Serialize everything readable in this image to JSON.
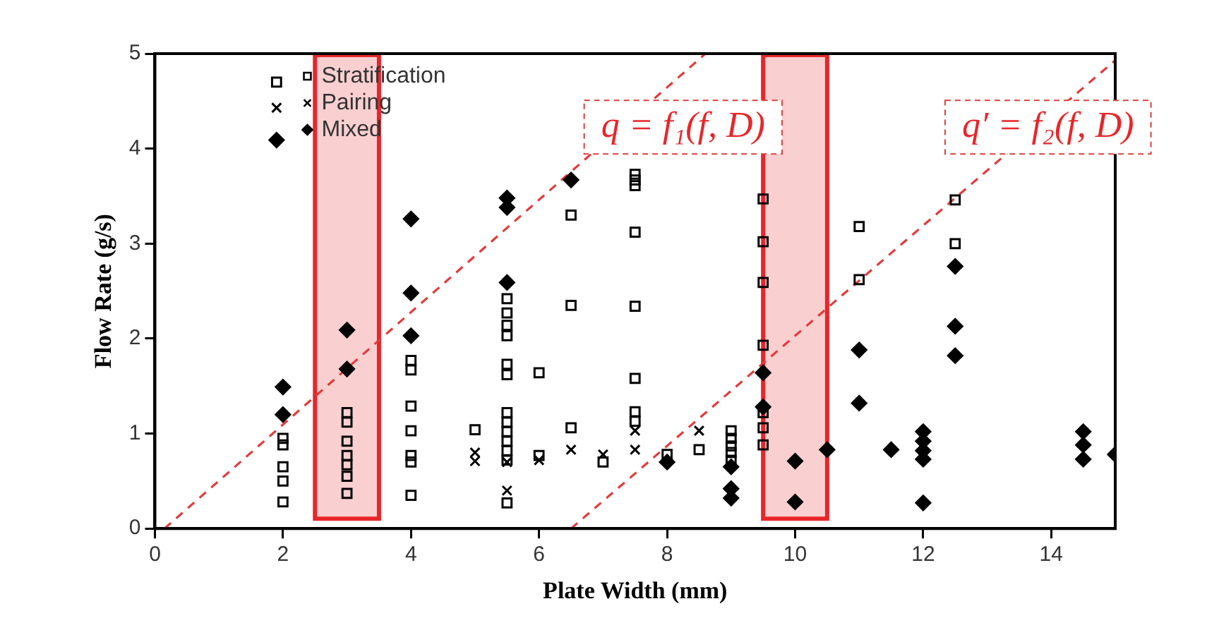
{
  "chart_data": {
    "type": "scatter",
    "xlabel": "Plate Width (mm)",
    "ylabel": "Flow Rate (g/s)",
    "xlim": [
      0,
      15
    ],
    "xticks": [
      0,
      2,
      4,
      6,
      8,
      10,
      12,
      14
    ],
    "ylim": [
      0,
      5
    ],
    "yticks": [
      0,
      1,
      2,
      3,
      4,
      5
    ],
    "grid": false,
    "legend": "top left",
    "series": [
      {
        "name": "Stratification",
        "color": "#000000",
        "marker": "square",
        "x": [
          1.9,
          2,
          2,
          2,
          2,
          2,
          3,
          3,
          3,
          3,
          3,
          3,
          3,
          4,
          4,
          4,
          4,
          4,
          4,
          4,
          5,
          5.5,
          5.5,
          5.5,
          5.5,
          5.5,
          5.5,
          5.5,
          5.5,
          5.5,
          5.5,
          5.5,
          5.5,
          5.5,
          6,
          6,
          6.5,
          6.5,
          6.5,
          7,
          7.5,
          7.5,
          7.5,
          7.5,
          7.5,
          7.5,
          7.5,
          7.5,
          8,
          8.5,
          9,
          9,
          9,
          9,
          9,
          9.5,
          9.5,
          9.5,
          9.5,
          9.5,
          9.5,
          9.5,
          11,
          11,
          12.5,
          12.5
        ],
        "values": [
          4.7,
          0.95,
          0.88,
          0.65,
          0.5,
          0.28,
          1.22,
          1.12,
          0.92,
          0.77,
          0.67,
          0.55,
          0.37,
          1.77,
          1.67,
          1.29,
          1.03,
          0.77,
          0.7,
          0.35,
          1.04,
          2.42,
          2.27,
          2.14,
          2.03,
          1.73,
          1.62,
          1.22,
          1.12,
          1.02,
          0.92,
          0.82,
          0.72,
          0.27,
          1.64,
          0.77,
          3.3,
          2.35,
          1.06,
          0.7,
          3.73,
          3.67,
          3.61,
          3.12,
          2.34,
          1.58,
          1.23,
          1.13,
          0.78,
          0.83,
          1.03,
          0.95,
          0.87,
          0.8,
          0.72,
          3.47,
          3.02,
          2.59,
          1.93,
          1.22,
          1.06,
          0.88,
          3.18,
          2.62,
          3.46,
          3.0
        ]
      },
      {
        "name": "Pairing",
        "color": "#000000",
        "marker": "cross",
        "x": [
          1.9,
          5,
          5,
          5.5,
          5.5,
          6,
          6.5,
          7,
          7.5,
          7.5,
          8.5
        ],
        "values": [
          4.43,
          0.8,
          0.71,
          0.7,
          0.4,
          0.72,
          0.83,
          0.78,
          1.03,
          0.83,
          1.03
        ]
      },
      {
        "name": "Mixed",
        "color": "#000000",
        "marker": "diamond",
        "x": [
          1.9,
          2,
          2,
          3,
          3,
          4,
          4,
          4,
          5.5,
          5.5,
          5.5,
          6.5,
          8,
          9,
          9,
          9,
          9.5,
          9.5,
          10,
          10,
          10.5,
          11,
          11,
          11.5,
          12,
          12,
          12,
          12,
          12,
          12.5,
          12.5,
          12.5,
          14.5,
          14.5,
          14.5,
          15
        ],
        "values": [
          4.09,
          1.49,
          1.2,
          2.09,
          1.68,
          3.26,
          2.48,
          2.03,
          3.48,
          3.38,
          2.59,
          3.67,
          0.7,
          0.65,
          0.42,
          0.32,
          1.64,
          1.28,
          0.71,
          0.28,
          0.83,
          1.88,
          1.32,
          0.83,
          1.02,
          0.92,
          0.82,
          0.73,
          0.27,
          2.76,
          2.13,
          1.82,
          1.02,
          0.88,
          0.73,
          0.78
        ]
      },
      {
        "type": "line",
        "color": "#e03c3c",
        "line_style": "dashed",
        "marker": "none",
        "x": [
          0.15,
          8.6
        ],
        "values": [
          0,
          5
        ]
      },
      {
        "type": "line",
        "color": "#e03c3c",
        "line_style": "dashed",
        "marker": "none",
        "x": [
          6.5,
          15
        ],
        "values": [
          0,
          4.93
        ]
      }
    ],
    "bands": [
      {
        "axis": "x",
        "from": 2.5,
        "to": 3.5,
        "color": "#e8262a"
      },
      {
        "axis": "x",
        "from": 9.5,
        "to": 10.5,
        "color": "#e8262a"
      }
    ],
    "annotations": [
      "q = f₁(f, D)",
      "q′ = f₂(f, D)"
    ]
  }
}
